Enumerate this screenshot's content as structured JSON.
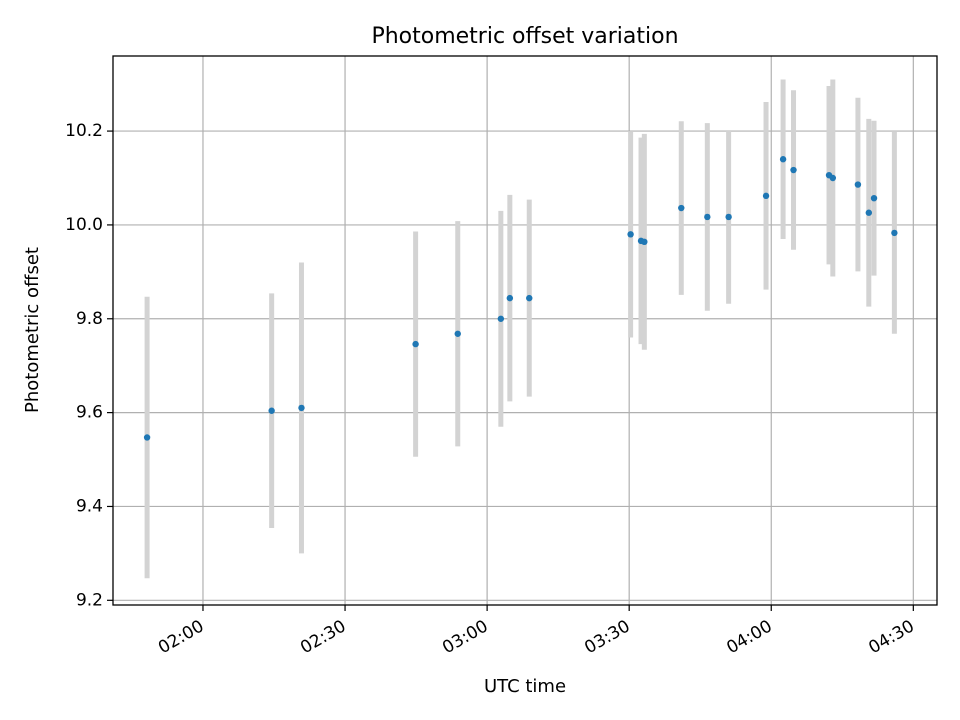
{
  "chart_data": {
    "type": "scatter",
    "title": "Photometric offset variation",
    "xlabel": "UTC time",
    "ylabel": "Photometric offset",
    "grid": true,
    "x_unit": "minutes after 00:00 UTC",
    "xlim": [
      101,
      275
    ],
    "ylim": [
      9.19,
      10.36
    ],
    "xticks": [
      {
        "value": 120,
        "label": "02:00"
      },
      {
        "value": 150,
        "label": "02:30"
      },
      {
        "value": 180,
        "label": "03:00"
      },
      {
        "value": 210,
        "label": "03:30"
      },
      {
        "value": 240,
        "label": "04:00"
      },
      {
        "value": 270,
        "label": "04:30"
      }
    ],
    "yticks": [
      {
        "value": 9.2,
        "label": "9.2"
      },
      {
        "value": 9.4,
        "label": "9.4"
      },
      {
        "value": 9.6,
        "label": "9.6"
      },
      {
        "value": 9.8,
        "label": "9.8"
      },
      {
        "value": 10.0,
        "label": "10.0"
      },
      {
        "value": 10.2,
        "label": "10.2"
      }
    ],
    "point_color": "#1f77b4",
    "errorbar_color": "#d3d3d3",
    "points": [
      {
        "x": 108.2,
        "y": 9.547,
        "err": 0.3
      },
      {
        "x": 134.5,
        "y": 9.604,
        "err": 0.25
      },
      {
        "x": 140.8,
        "y": 9.61,
        "err": 0.31
      },
      {
        "x": 164.9,
        "y": 9.746,
        "err": 0.24
      },
      {
        "x": 173.8,
        "y": 9.768,
        "err": 0.24
      },
      {
        "x": 182.9,
        "y": 9.8,
        "err": 0.23
      },
      {
        "x": 184.8,
        "y": 9.844,
        "err": 0.22
      },
      {
        "x": 188.9,
        "y": 9.844,
        "err": 0.21
      },
      {
        "x": 210.3,
        "y": 9.98,
        "err": 0.22
      },
      {
        "x": 212.5,
        "y": 9.966,
        "err": 0.22
      },
      {
        "x": 213.2,
        "y": 9.964,
        "err": 0.23
      },
      {
        "x": 221.0,
        "y": 10.036,
        "err": 0.185
      },
      {
        "x": 226.5,
        "y": 10.017,
        "err": 0.2
      },
      {
        "x": 231.0,
        "y": 10.017,
        "err": 0.185
      },
      {
        "x": 238.9,
        "y": 10.062,
        "err": 0.2
      },
      {
        "x": 242.5,
        "y": 10.14,
        "err": 0.17
      },
      {
        "x": 244.7,
        "y": 10.117,
        "err": 0.17
      },
      {
        "x": 252.2,
        "y": 10.106,
        "err": 0.19
      },
      {
        "x": 253.0,
        "y": 10.1,
        "err": 0.21
      },
      {
        "x": 258.3,
        "y": 10.086,
        "err": 0.185
      },
      {
        "x": 260.6,
        "y": 10.026,
        "err": 0.2
      },
      {
        "x": 261.7,
        "y": 10.057,
        "err": 0.165
      },
      {
        "x": 266.0,
        "y": 9.983,
        "err": 0.215
      }
    ]
  }
}
